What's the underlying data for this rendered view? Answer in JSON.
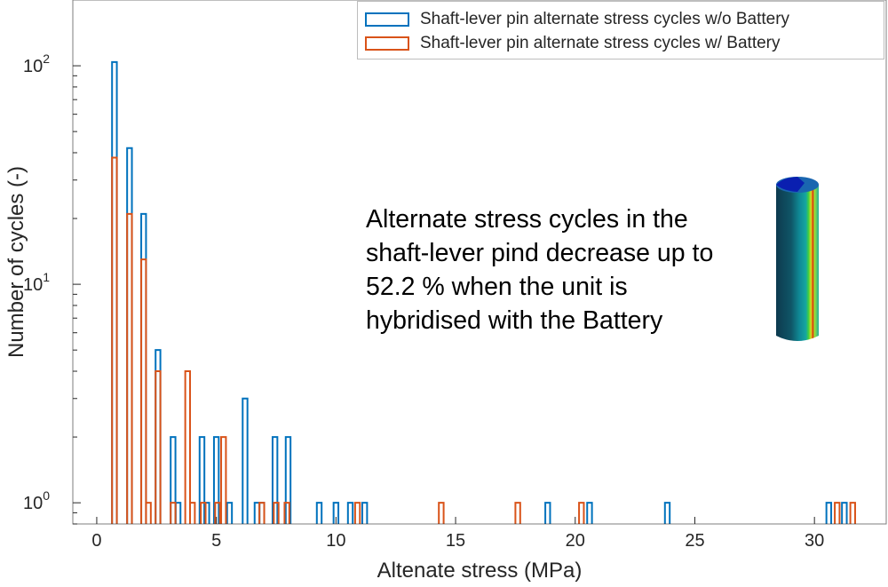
{
  "chart_data": {
    "type": "bar",
    "style": "stairs-histogram",
    "xlabel": "Altenate stress (MPa)",
    "ylabel": "Number of cycles (-)",
    "xlim": [
      -1,
      33
    ],
    "ylim": [
      0.8,
      200
    ],
    "yscale": "log",
    "xticks": [
      "0",
      "5",
      "10",
      "15",
      "20",
      "25",
      "30"
    ],
    "xtick_values": [
      0,
      5,
      10,
      15,
      20,
      25,
      30
    ],
    "yticks": [
      {
        "base": "10",
        "exp": "0",
        "value": 1
      },
      {
        "base": "10",
        "exp": "1",
        "value": 10
      },
      {
        "base": "10",
        "exp": "2",
        "value": 100
      }
    ],
    "grid": false,
    "legend_placement": "top-right",
    "bin_width": 0.2,
    "series": [
      {
        "name": "Shaft-lever pin alternate stress cycles w/o Battery",
        "color": "#0072BD",
        "x": [
          0.74,
          1.37,
          1.96,
          2.56,
          3.19,
          3.4,
          4.4,
          4.6,
          5.0,
          5.55,
          6.2,
          6.7,
          6.9,
          7.45,
          8.0,
          9.3,
          10.0,
          10.6,
          11.2,
          18.85,
          20.6,
          23.85,
          30.6,
          31.25
        ],
        "values": [
          104,
          42,
          21,
          5,
          2,
          1,
          2,
          1,
          2,
          1,
          3,
          1,
          1,
          2,
          2,
          1,
          1,
          1,
          1,
          1,
          1,
          1,
          1,
          1
        ]
      },
      {
        "name": "Shaft-lever pin alternate stress cycles w/ Battery",
        "color": "#D95319",
        "x": [
          0.74,
          1.37,
          1.96,
          2.16,
          2.56,
          3.19,
          3.8,
          4.0,
          4.45,
          5.05,
          5.3,
          6.9,
          7.5,
          7.95,
          10.9,
          14.4,
          17.6,
          20.26,
          30.95,
          31.6
        ],
        "values": [
          38,
          21,
          13,
          1,
          4,
          1,
          4,
          1,
          1,
          1,
          2,
          1,
          1,
          1,
          1,
          1,
          1,
          1,
          1,
          1
        ]
      }
    ]
  },
  "annotation": [
    "Alternate stress cycles in the",
    "shaft-lever pind decrease up to",
    "52.2 % when the unit is",
    "hybridised with the Battery"
  ],
  "image_icon": "stress-contour-pin-image"
}
